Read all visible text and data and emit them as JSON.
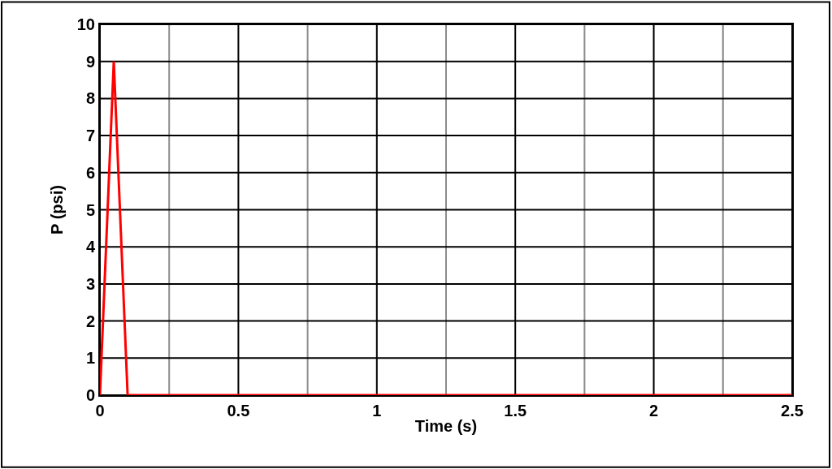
{
  "chart_data": {
    "type": "line",
    "xlabel": "Time (s)",
    "ylabel": "P (psi)",
    "x": [
      0,
      0.05,
      0.1,
      2.5
    ],
    "series": [
      {
        "color": "#ff0000",
        "values": [
          0,
          9,
          0,
          0
        ]
      }
    ],
    "xlim": [
      0,
      2.5
    ],
    "xticks": [
      0,
      {
        "value": 0.25,
        "label": null
      },
      0.5,
      {
        "value": 0.75,
        "label": null
      },
      1,
      {
        "value": 1.25,
        "label": null
      },
      1.5,
      {
        "value": 1.75,
        "label": null
      },
      2,
      {
        "value": 2.25,
        "label": null
      },
      2.5
    ],
    "ylim": [
      0,
      10
    ],
    "yticks": [
      0,
      1,
      2,
      3,
      4,
      5,
      6,
      7,
      8,
      9,
      10
    ],
    "grid": true,
    "marker": "none",
    "line_style": "solid"
  }
}
